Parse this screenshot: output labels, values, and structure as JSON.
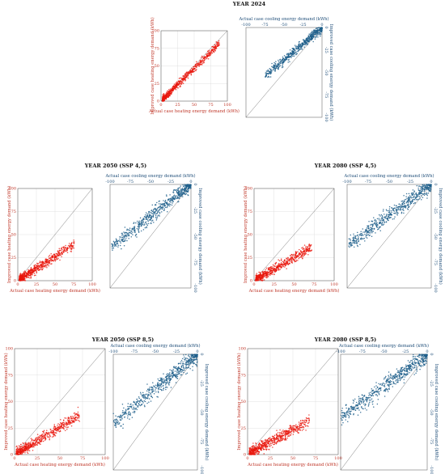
{
  "chart_data": [
    {
      "group_title": "YEAR 2024",
      "heating": {
        "type": "scatter",
        "xlabel": "Actual case heating energy demand (kWh)",
        "ylabel": "Improved case heating energy demand (kWh)",
        "xlim": [
          0,
          100
        ],
        "ylim": [
          0,
          100
        ],
        "xticks": [
          "0",
          "25",
          "50",
          "75",
          "100"
        ],
        "yticks": [
          "0",
          "25",
          "50",
          "75",
          "100"
        ],
        "slope": 0.93,
        "spread": 2.5,
        "x_max": 88,
        "color": "#e8160c",
        "grid": true,
        "diagonal": true
      },
      "cooling": {
        "type": "scatter",
        "xlabel": "Actual case cooling energy demand (kWh)",
        "ylabel": "Improved case cooling energy demand (kWh)",
        "xlim": [
          -100,
          0
        ],
        "ylim": [
          -100,
          0
        ],
        "xticks": [
          "-100",
          "-75",
          "-50",
          "-25",
          "0"
        ],
        "yticks": [
          "-100",
          "-75",
          "-50",
          "-25",
          "0"
        ],
        "slope": 0.72,
        "spread": 2.5,
        "x_min": -75,
        "color": "#1f5f8b",
        "grid": false,
        "diagonal": true
      }
    },
    {
      "group_title": "YEAR 2050 (SSP 4,5)",
      "heating": {
        "type": "scatter",
        "xlabel": "Actual case heating energy demand (kWh)",
        "ylabel": "Improved case heating energy demand (kWh)",
        "xlim": [
          0,
          100
        ],
        "ylim": [
          0,
          100
        ],
        "xticks": [
          "0",
          "25",
          "50",
          "75",
          "100"
        ],
        "yticks": [
          "0",
          "25",
          "50",
          "75",
          "100"
        ],
        "slope": 0.52,
        "spread": 2.5,
        "x_max": 76,
        "color": "#e8160c",
        "grid": true,
        "diagonal": true
      },
      "cooling": {
        "type": "scatter",
        "xlabel": "Actual case cooling energy demand (kWh)",
        "ylabel": "Improved case cooling energy demand (kWh)",
        "xlim": [
          -100,
          0
        ],
        "ylim": [
          -100,
          0
        ],
        "xticks": [
          "-100",
          "-75",
          "-50",
          "-25",
          "0"
        ],
        "yticks": [
          "-100",
          "-75",
          "-50",
          "-25",
          "0"
        ],
        "slope": 0.62,
        "spread": 3.5,
        "x_min": -98,
        "color": "#1f5f8b",
        "grid": false,
        "diagonal": true
      }
    },
    {
      "group_title": "YEAR 2080 (SSP 4,5)",
      "heating": {
        "type": "scatter",
        "xlabel": "Actual case heating energy demand (kWh)",
        "ylabel": "Improved case heating energy demand (kWh)",
        "xlim": [
          0,
          100
        ],
        "ylim": [
          0,
          100
        ],
        "xticks": [
          "0",
          "25",
          "50",
          "75",
          "100"
        ],
        "yticks": [
          "0",
          "25",
          "50",
          "75",
          "100"
        ],
        "slope": 0.5,
        "spread": 2.5,
        "x_max": 72,
        "color": "#e8160c",
        "grid": true,
        "diagonal": true
      },
      "cooling": {
        "type": "scatter",
        "xlabel": "Actual case cooling energy demand (kWh)",
        "ylabel": "Improved case cooling energy demand (kWh)",
        "xlim": [
          -100,
          0
        ],
        "ylim": [
          -100,
          0
        ],
        "xticks": [
          "-100",
          "-75",
          "-50",
          "-25",
          "0"
        ],
        "yticks": [
          "-100",
          "-75",
          "-50",
          "-25",
          "0"
        ],
        "slope": 0.6,
        "spread": 3.5,
        "x_min": -98,
        "color": "#1f5f8b",
        "grid": false,
        "diagonal": true
      }
    },
    {
      "group_title": "YEAR 2050 (SSP 8,5)",
      "heating": {
        "type": "scatter",
        "xlabel": "Actual case heating energy demand (kWh)",
        "ylabel": "Improved case heating energy demand (kWh)",
        "xlim": [
          0,
          100
        ],
        "ylim": [
          0,
          100
        ],
        "xticks": [
          "0",
          "25",
          "50",
          "75",
          "100"
        ],
        "yticks": [
          "0",
          "25",
          "50",
          "75",
          "100"
        ],
        "slope": 0.52,
        "spread": 2.5,
        "x_max": 72,
        "color": "#e8160c",
        "grid": true,
        "diagonal": true
      },
      "cooling": {
        "type": "scatter",
        "xlabel": "Actual case cooling energy demand (kWh)",
        "ylabel": "Improved case cooling energy demand (kWh)",
        "xlim": [
          -100,
          0
        ],
        "ylim": [
          -100,
          0
        ],
        "xticks": [
          "-100",
          "-75",
          "-50",
          "-25",
          "0"
        ],
        "yticks": [
          "-100",
          "-75",
          "-50",
          "-25",
          "0"
        ],
        "slope": 0.6,
        "spread": 3.5,
        "x_min": -100,
        "color": "#1f5f8b",
        "grid": false,
        "diagonal": true
      }
    },
    {
      "group_title": "YEAR 2080 (SSP 8,5)",
      "heating": {
        "type": "scatter",
        "xlabel": "Actual case heating energy demand (kWh)",
        "ylabel": "Improved case heating energy demand (kWh)",
        "xlim": [
          0,
          100
        ],
        "ylim": [
          0,
          100
        ],
        "xticks": [
          "0",
          "25",
          "50",
          "75",
          "100"
        ],
        "yticks": [
          "0",
          "25",
          "50",
          "75",
          "100"
        ],
        "slope": 0.47,
        "spread": 2.5,
        "x_max": 68,
        "color": "#e8160c",
        "grid": true,
        "diagonal": true
      },
      "cooling": {
        "type": "scatter",
        "xlabel": "Actual case cooling energy demand (kWh)",
        "ylabel": "Improved case cooling energy demand (kWh)",
        "xlim": [
          -100,
          0
        ],
        "ylim": [
          -100,
          0
        ],
        "xticks": [
          "-100",
          "-75",
          "-50",
          "-25",
          "0"
        ],
        "yticks": [
          "-100",
          "-75",
          "-50",
          "-25",
          "0"
        ],
        "slope": 0.55,
        "spread": 3.5,
        "x_min": -100,
        "color": "#1f5f8b",
        "grid": false,
        "diagonal": true
      }
    }
  ]
}
